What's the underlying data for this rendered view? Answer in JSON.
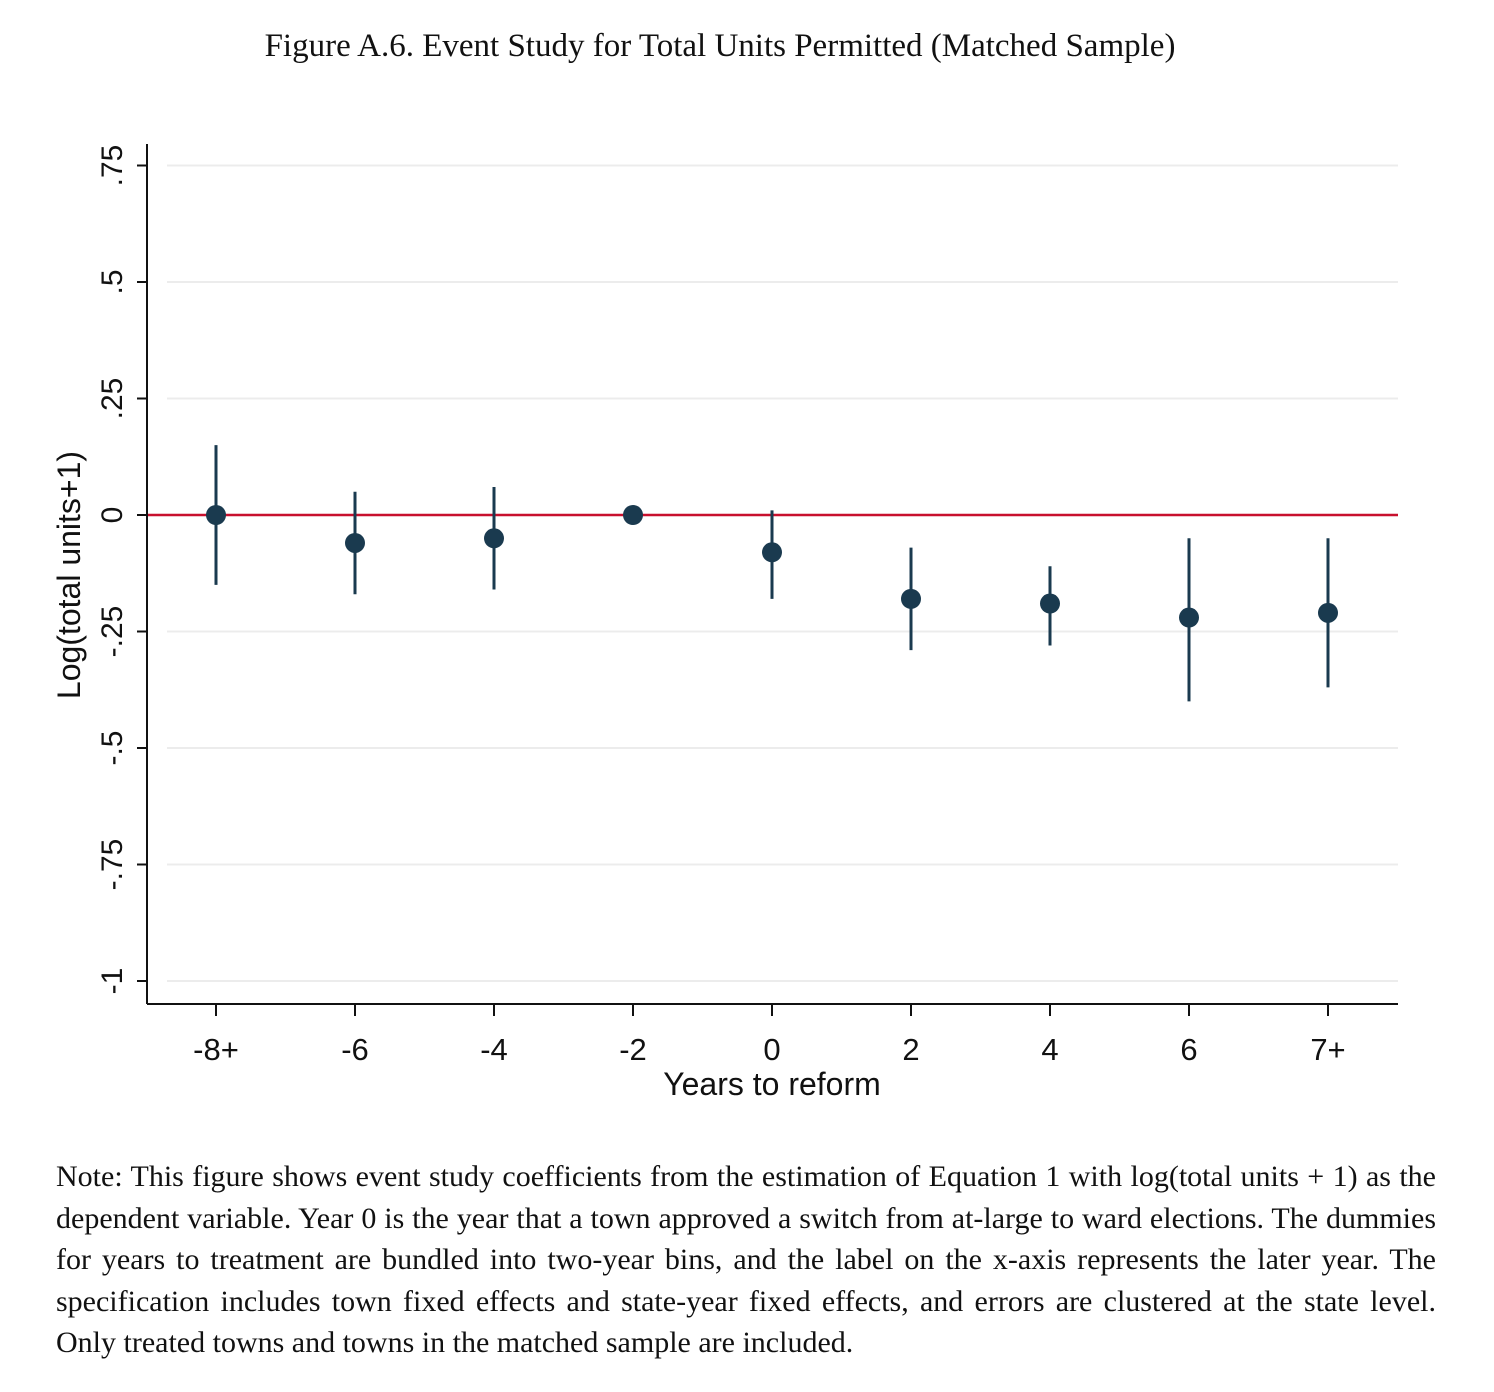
{
  "figure": {
    "title": "Figure A.6. Event Study for Total Units Permitted (Matched Sample)",
    "note": "Note: This figure shows event study coefficients from the estimation of Equation 1 with log(total units + 1) as the dependent variable. Year 0 is the year that a town approved a switch from at-large to ward elections. The dummies for years to treatment are bundled into two-year bins, and the label on the x-axis represents the later year. The specification includes town fixed effects and state-year fixed effects, and errors are clustered at the state level. Only treated towns and towns in the matched sample are included."
  },
  "chart_data": {
    "type": "scatter",
    "xlabel": "Years to reform",
    "ylabel": "Log(total units+1)",
    "categories": [
      "-8+",
      "-6",
      "-4",
      "-2",
      "0",
      "2",
      "4",
      "6",
      "7+"
    ],
    "values": [
      0.0,
      -0.06,
      -0.05,
      0.0,
      -0.08,
      -0.18,
      -0.19,
      -0.22,
      -0.21
    ],
    "ci_low": [
      -0.15,
      -0.17,
      -0.16,
      0.0,
      -0.18,
      -0.29,
      -0.28,
      -0.4,
      -0.37
    ],
    "ci_high": [
      0.15,
      0.05,
      0.06,
      0.0,
      0.01,
      -0.07,
      -0.11,
      -0.05,
      -0.05
    ],
    "yticks": [
      -1,
      -0.75,
      -0.5,
      -0.25,
      0,
      0.25,
      0.5,
      0.75
    ],
    "ytick_labels": [
      "-1",
      "-.75",
      "-.5",
      "-.25",
      "0",
      ".25",
      ".5",
      ".75"
    ],
    "ylim": [
      -1.05,
      0.78
    ],
    "reference_line": 0,
    "reference_line_color": "#c8102e",
    "marker_color": "#1a3a4f",
    "grid": true,
    "gridline_color": "#ececec"
  }
}
